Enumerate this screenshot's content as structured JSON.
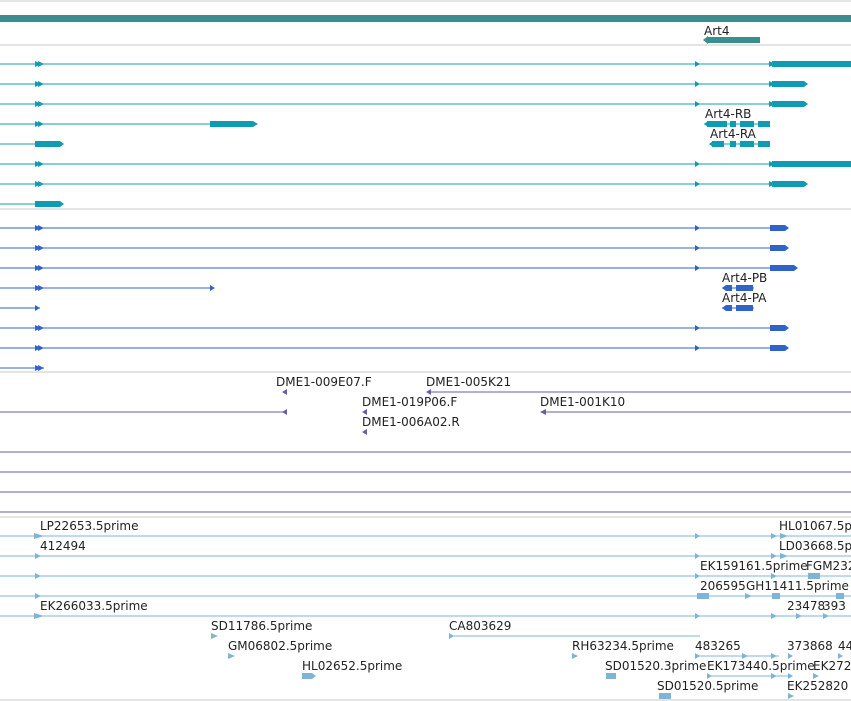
{
  "colors": {
    "gene": "#3a8e8e",
    "transcript": "#0f9cb3",
    "protein": "#2f63c7",
    "clone": "#6b5ba8",
    "est": "#7db4d8",
    "divider": "#c8c8c8"
  },
  "tracks": {
    "gene": {
      "labels": [
        "Art4"
      ]
    },
    "transcripts": {
      "labels": [
        "Art4-RB",
        "Art4-RA"
      ]
    },
    "proteins": {
      "labels": [
        "Art4-PB",
        "Art4-PA"
      ]
    },
    "clones": {
      "labels": [
        "DME1-009E07.F",
        "DME1-005K21",
        "DME1-019P06.F",
        "DME1-001K10",
        "DME1-006A02.R"
      ]
    },
    "ests": {
      "labels": [
        "LP22653.5prime",
        "412494",
        "EK266033.5prime",
        "SD11786.5prime",
        "GM06802.5prime",
        "HL02652.5prime",
        "CA803629",
        "RH63234.5prime",
        "SD01520.3prime",
        "SD01520.5prime",
        "483265",
        "EK173440.5prime",
        "EK159161.5prime",
        "206595",
        "GH11411.5prime",
        "HL01067.5p",
        "LD03668.5p",
        "FGM232",
        "23478",
        "393",
        "373868",
        "44",
        "EK272",
        "EK252820"
      ]
    }
  }
}
